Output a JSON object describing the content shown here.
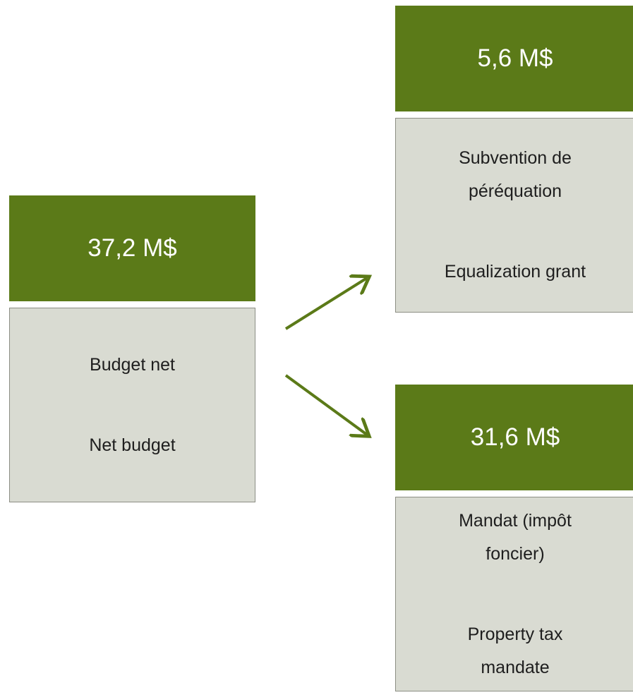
{
  "nodes": [
    {
      "amount": "37,2 M$",
      "label_fr": [
        "Budget net"
      ],
      "label_en": [
        "Net budget"
      ]
    },
    {
      "amount": "5,6 M$",
      "label_fr": [
        "Subvention de",
        "péréquation"
      ],
      "label_en": [
        "Equalization grant"
      ]
    },
    {
      "amount": "31,6 M$",
      "label_fr": [
        "Mandat (impôt",
        "foncier)"
      ],
      "label_en": [
        "Property tax",
        "mandate"
      ]
    }
  ]
}
